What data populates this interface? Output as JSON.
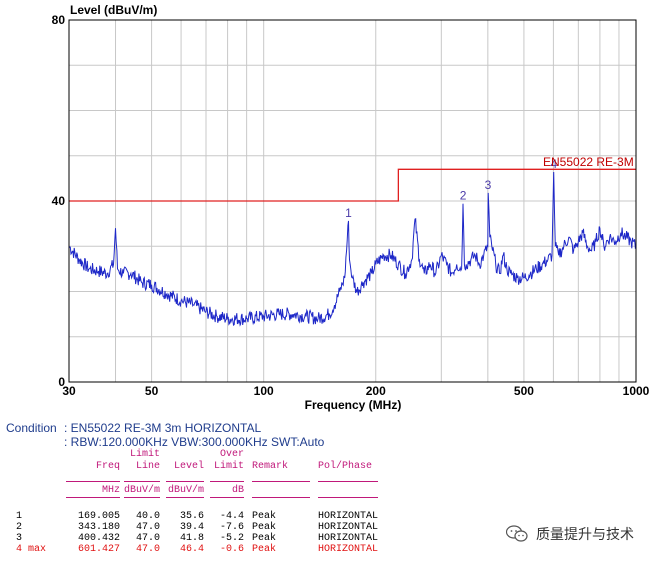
{
  "chart_data": {
    "type": "line",
    "ylabel": "Level (dBuV/m)",
    "xlabel": "Frequency (MHz)",
    "x_scale": "log",
    "xlim": [
      30,
      1000
    ],
    "ylim": [
      0,
      80
    ],
    "y_ticks": [
      0,
      40,
      80
    ],
    "x_ticks": [
      30,
      50,
      100,
      200,
      500,
      1000
    ],
    "grid": true,
    "limit_line": {
      "name": "EN55022 RE-3M",
      "segments": [
        {
          "x": [
            30,
            230
          ],
          "y": 40
        },
        {
          "x": [
            230,
            1000
          ],
          "y": 47
        }
      ]
    },
    "series": [
      {
        "x": [
          30,
          32,
          34,
          36,
          38,
          39.5,
          40,
          40.5,
          42,
          44,
          47,
          50,
          55,
          60,
          65,
          70,
          75,
          80,
          90,
          100,
          110,
          120,
          130,
          140,
          150,
          155,
          160,
          165,
          169,
          170,
          173,
          178,
          185,
          195,
          200,
          210,
          220,
          230,
          240,
          250,
          255,
          262,
          270,
          280,
          290,
          300,
          310,
          320,
          330,
          340,
          343,
          346,
          350,
          360,
          370,
          380,
          390,
          400,
          401,
          405,
          410,
          420,
          430,
          440,
          450,
          460,
          480,
          500,
          520,
          540,
          560,
          580,
          595,
          601,
          607,
          620,
          640,
          660,
          680,
          700,
          720,
          740,
          760,
          780,
          800,
          820,
          850,
          880,
          910,
          940,
          970,
          1000
        ],
        "y": [
          30,
          27,
          25,
          24.5,
          24,
          26,
          34,
          25,
          24,
          24,
          22,
          21.5,
          19.5,
          18,
          17,
          15.5,
          14.5,
          14,
          14,
          14.5,
          15,
          15,
          14.5,
          14,
          15,
          17,
          20,
          23,
          35.6,
          27,
          23,
          20,
          22,
          24,
          26,
          28,
          28,
          26,
          24,
          27,
          36,
          27,
          24,
          26,
          24,
          28,
          26,
          24,
          26,
          25,
          39.4,
          26,
          26,
          27,
          28,
          26,
          28,
          30,
          41.8,
          32,
          30,
          26,
          24,
          28,
          25,
          24,
          23,
          23,
          24,
          25,
          26,
          27,
          28,
          46.4,
          30,
          28,
          30,
          32,
          29,
          31,
          33,
          30,
          29,
          31,
          34,
          30,
          32,
          31,
          33,
          32,
          31,
          30
        ]
      }
    ],
    "markers": [
      {
        "label": "1",
        "x": 169.005,
        "y": 35.6
      },
      {
        "label": "2",
        "x": 343.18,
        "y": 39.4
      },
      {
        "label": "3",
        "x": 400.432,
        "y": 41.8
      },
      {
        "label": "4",
        "x": 601.427,
        "y": 46.4
      }
    ]
  },
  "condition": {
    "label": "Condition",
    "line1": ": EN55022 RE-3M 3m HORIZONTAL",
    "line2": ": RBW:120.000KHz VBW:300.000KHz SWT:Auto"
  },
  "table": {
    "header_top": [
      "",
      "Limit",
      "",
      "Over",
      "",
      ""
    ],
    "header_mid": [
      "Freq",
      "Line",
      "Level",
      "Limit",
      "Remark",
      "Pol/Phase"
    ],
    "units": [
      "MHz",
      "dBuV/m",
      "dBuV/m",
      "dB",
      "",
      ""
    ],
    "rows": [
      {
        "id": "1",
        "freq": "169.005",
        "limit": "40.0",
        "level": "35.6",
        "over": "-4.4",
        "remark": "Peak",
        "pol": "HORIZONTAL",
        "max": false
      },
      {
        "id": "2",
        "freq": "343.180",
        "limit": "47.0",
        "level": "39.4",
        "over": "-7.6",
        "remark": "Peak",
        "pol": "HORIZONTAL",
        "max": false
      },
      {
        "id": "3",
        "freq": "400.432",
        "limit": "47.0",
        "level": "41.8",
        "over": "-5.2",
        "remark": "Peak",
        "pol": "HORIZONTAL",
        "max": false
      },
      {
        "id": "4 max",
        "freq": "601.427",
        "limit": "47.0",
        "level": "46.4",
        "over": "-0.6",
        "remark": "Peak",
        "pol": "HORIZONTAL",
        "max": true
      }
    ]
  },
  "watermark": {
    "text": "质量提升与技术"
  },
  "colors": {
    "trace": "#1e28c8",
    "limit": "#e02020",
    "marker": "#4a3aa8",
    "header": "#c0187a",
    "grid": "#c8c8c8"
  }
}
